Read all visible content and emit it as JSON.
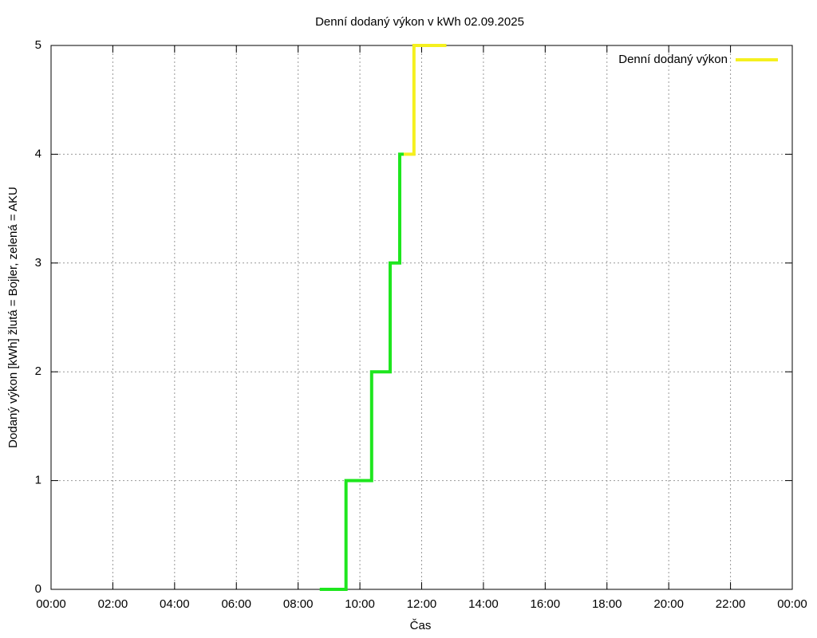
{
  "chart_data": {
    "type": "step-line",
    "title": "Denní dodaný výkon v kWh 02.09.2025",
    "x_label": "Čas",
    "y_label": "Dodaný výkon [kWh]  žlutá = Bojler, zelená = AKU",
    "xlim": [
      0,
      24
    ],
    "xticks": [
      {
        "value": 0,
        "label": "00:00"
      },
      {
        "value": 2,
        "label": "02:00"
      },
      {
        "value": 4,
        "label": "04:00"
      },
      {
        "value": 6,
        "label": "06:00"
      },
      {
        "value": 8,
        "label": "08:00"
      },
      {
        "value": 10,
        "label": "10:00"
      },
      {
        "value": 12,
        "label": "12:00"
      },
      {
        "value": 14,
        "label": "14:00"
      },
      {
        "value": 16,
        "label": "16:00"
      },
      {
        "value": 18,
        "label": "18:00"
      },
      {
        "value": 20,
        "label": "20:00"
      },
      {
        "value": 22,
        "label": "22:00"
      },
      {
        "value": 24,
        "label": "00:00"
      }
    ],
    "ylim": [
      0,
      5
    ],
    "yticks": [
      0,
      1,
      2,
      3,
      4,
      5
    ],
    "grid": true,
    "legend": "top-right",
    "series": [
      {
        "color": "#1ee61e",
        "x": [
          8.7,
          9.55,
          10.38,
          10.98,
          11.29,
          11.42
        ],
        "values": [
          0,
          1,
          2,
          3,
          4,
          4
        ]
      },
      {
        "name": "Denní dodaný výkon",
        "color": "#f5f01e",
        "x": [
          11.42,
          11.75,
          12.8
        ],
        "values": [
          4,
          5,
          5
        ]
      }
    ]
  }
}
